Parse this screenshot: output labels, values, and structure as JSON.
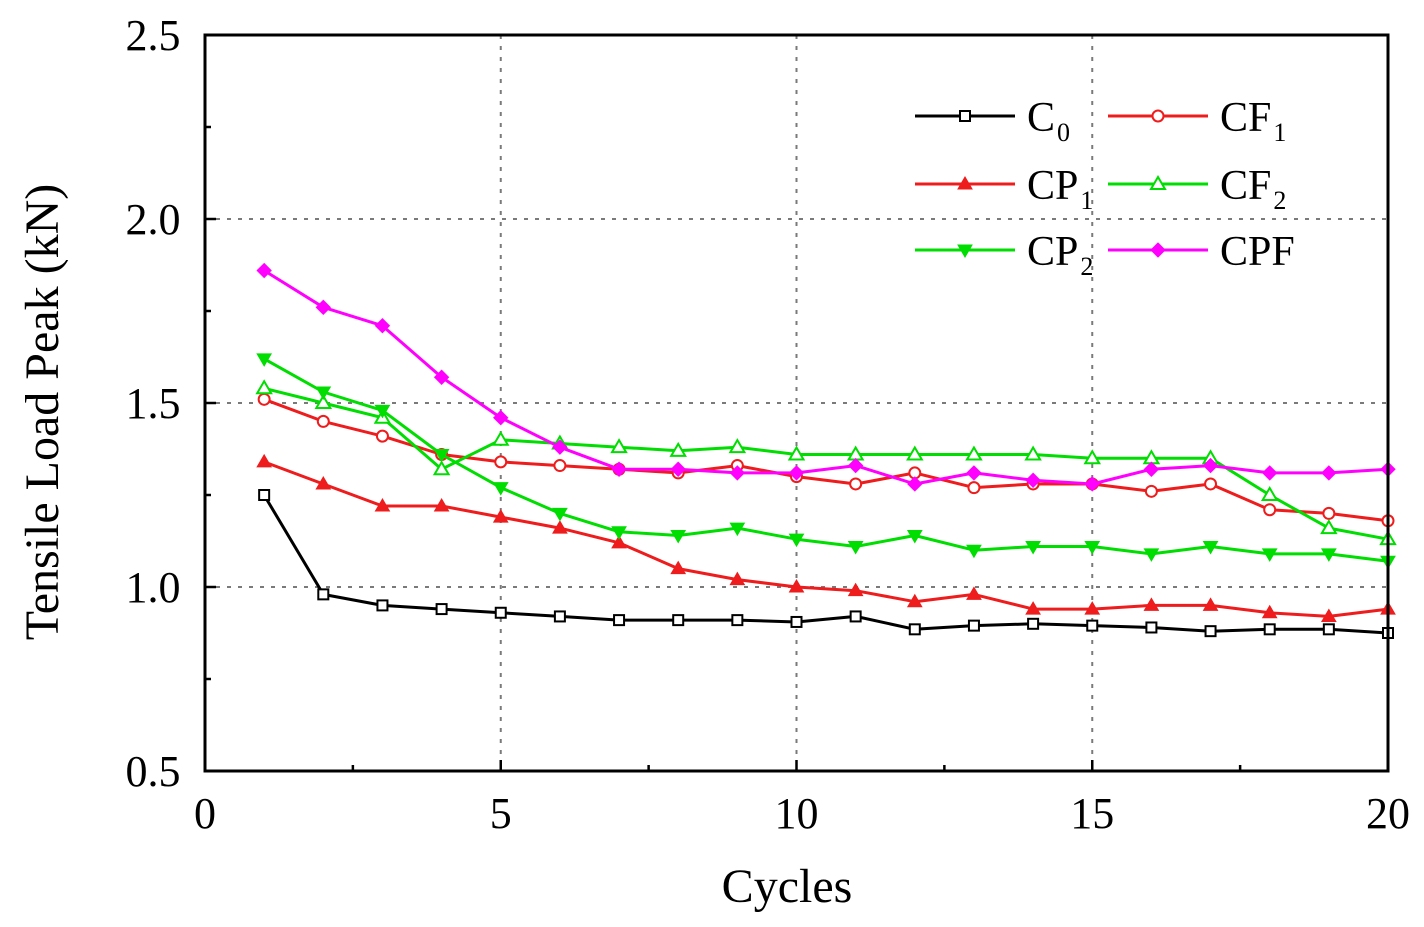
{
  "chart_data": {
    "type": "line",
    "title": "",
    "xlabel": "Cycles",
    "ylabel": "Tensile Load Peak (kN)",
    "xlim": [
      0,
      20
    ],
    "ylim": [
      0.5,
      2.5
    ],
    "xticks": [
      0,
      5,
      10,
      15,
      20
    ],
    "yticks": [
      0.5,
      1.0,
      1.5,
      2.0,
      2.5
    ],
    "xtick_labels": [
      "0",
      "5",
      "10",
      "15",
      "20"
    ],
    "ytick_labels": [
      "0.5",
      "1.0",
      "1.5",
      "2.0",
      "2.5"
    ],
    "grid": true,
    "legend_position": "top-right",
    "x": [
      1,
      2,
      3,
      4,
      5,
      6,
      7,
      8,
      9,
      10,
      11,
      12,
      13,
      14,
      15,
      16,
      17,
      18,
      19,
      20
    ],
    "series": [
      {
        "name": "C0",
        "label_main": "C",
        "label_sub": "0",
        "color": "#000000",
        "marker": "square-open",
        "values": [
          1.25,
          0.98,
          0.95,
          0.94,
          0.93,
          0.92,
          0.91,
          0.91,
          0.91,
          0.905,
          0.92,
          0.885,
          0.895,
          0.9,
          0.895,
          0.89,
          0.88,
          0.885,
          0.885,
          0.875
        ]
      },
      {
        "name": "CF1",
        "label_main": "CF",
        "label_sub": "1",
        "color": "#ee1c1c",
        "marker": "circle-open",
        "values": [
          1.51,
          1.45,
          1.41,
          1.36,
          1.34,
          1.33,
          1.32,
          1.31,
          1.33,
          1.3,
          1.28,
          1.31,
          1.27,
          1.28,
          1.28,
          1.26,
          1.28,
          1.21,
          1.2,
          1.18
        ]
      },
      {
        "name": "CP1",
        "label_main": "CP",
        "label_sub": "1",
        "color": "#ee1c1c",
        "marker": "triangle-up-filled",
        "values": [
          1.34,
          1.28,
          1.22,
          1.22,
          1.19,
          1.16,
          1.12,
          1.05,
          1.02,
          1.0,
          0.99,
          0.96,
          0.98,
          0.94,
          0.94,
          0.95,
          0.95,
          0.93,
          0.92,
          0.94
        ]
      },
      {
        "name": "CF2",
        "label_main": "CF",
        "label_sub": "2",
        "color": "#00dd00",
        "marker": "triangle-up-open",
        "values": [
          1.54,
          1.5,
          1.46,
          1.32,
          1.4,
          1.39,
          1.38,
          1.37,
          1.38,
          1.36,
          1.36,
          1.36,
          1.36,
          1.36,
          1.35,
          1.35,
          1.35,
          1.25,
          1.16,
          1.13
        ]
      },
      {
        "name": "CP2",
        "label_main": "CP",
        "label_sub": "2",
        "color": "#00dd00",
        "marker": "triangle-down-filled",
        "values": [
          1.62,
          1.53,
          1.48,
          1.36,
          1.27,
          1.2,
          1.15,
          1.14,
          1.16,
          1.13,
          1.11,
          1.14,
          1.1,
          1.11,
          1.11,
          1.09,
          1.11,
          1.09,
          1.09,
          1.07
        ]
      },
      {
        "name": "CPF",
        "label_main": "CPF",
        "label_sub": "",
        "color": "#ff00ff",
        "marker": "diamond-filled",
        "values": [
          1.86,
          1.76,
          1.71,
          1.57,
          1.46,
          1.38,
          1.32,
          1.32,
          1.31,
          1.31,
          1.33,
          1.28,
          1.31,
          1.29,
          1.28,
          1.32,
          1.33,
          1.31,
          1.31,
          1.32
        ]
      }
    ]
  }
}
